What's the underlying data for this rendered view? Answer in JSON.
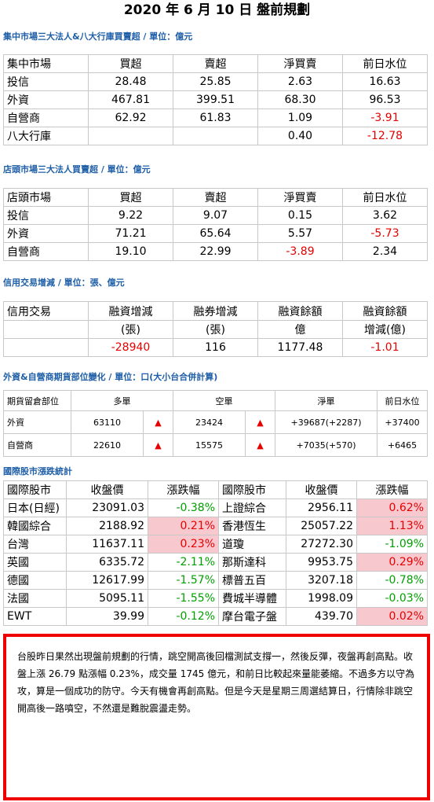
{
  "title": "2020 年 6 月 10 日  盤前規劃",
  "central": {
    "heading": "集中市場三大法人&八大行庫買賣超 / 單位：億元",
    "header": [
      "集中市場",
      "買超",
      "賣超",
      "淨買賣",
      "前日水位"
    ],
    "rows": [
      {
        "name": "投信",
        "buy": "28.48",
        "sell": "25.85",
        "net": "2.63",
        "prev": "16.63"
      },
      {
        "name": "外資",
        "buy": "467.81",
        "sell": "399.51",
        "net": "68.30",
        "prev": "96.53"
      },
      {
        "name": "自營商",
        "buy": "62.92",
        "sell": "61.83",
        "net": "1.09",
        "prev": "-3.91"
      },
      {
        "name": "八大行庫",
        "buy": "",
        "sell": "",
        "net": "0.40",
        "prev": "-12.78"
      }
    ]
  },
  "otc": {
    "heading": "店頭市場三大法人買賣超 / 單位：億元",
    "header": [
      "店頭市場",
      "買超",
      "賣超",
      "淨買賣",
      "前日水位"
    ],
    "rows": [
      {
        "name": "投信",
        "buy": "9.22",
        "sell": "9.07",
        "net": "0.15",
        "prev": "3.62"
      },
      {
        "name": "外資",
        "buy": "71.21",
        "sell": "65.64",
        "net": "5.57",
        "prev": "-5.73"
      },
      {
        "name": "自營商",
        "buy": "19.10",
        "sell": "22.99",
        "net": "-3.89",
        "prev": "2.34"
      }
    ]
  },
  "margin": {
    "heading": "信用交易增減 / 單位：張、億元",
    "header1": [
      "信用交易",
      "融資增減",
      "融券增減",
      "融資餘額",
      "融資餘額"
    ],
    "header2": [
      "",
      "(張)",
      "(張)",
      "億",
      "增減(億)"
    ],
    "values": [
      "",
      "-28940",
      "116",
      "1177.48",
      "-1.01"
    ]
  },
  "futures": {
    "heading": "外資&自營商期貨部位變化 / 單位：口(大小台合併計算)",
    "header": [
      "期貨留倉部位",
      "多單",
      "空單",
      "淨單",
      "前日水位"
    ],
    "rows": [
      {
        "name": "外資",
        "long": "63110",
        "long_mark": "▲",
        "short": "23424",
        "short_mark": "▲",
        "net": "+39687(+2287)",
        "prev": "+37400"
      },
      {
        "name": "自營商",
        "long": "22610",
        "long_mark": "▲",
        "short": "15575",
        "short_mark": "▲",
        "net": "+7035(+570)",
        "prev": "+6465"
      }
    ]
  },
  "intl": {
    "heading": "國際股市漲跌統計",
    "header": [
      "國際股市",
      "收盤價",
      "漲跌幅",
      "國際股市",
      "收盤價",
      "漲跌幅"
    ],
    "rows": [
      {
        "l_name": "日本(日經)",
        "l_close": "23091.03",
        "l_chg": "-0.38%",
        "r_name": "上證綜合",
        "r_close": "2956.11",
        "r_chg": "0.62%"
      },
      {
        "l_name": "韓國綜合",
        "l_close": "2188.92",
        "l_chg": "0.21%",
        "r_name": "香港恆生",
        "r_close": "25057.22",
        "r_chg": "1.13%"
      },
      {
        "l_name": "台灣",
        "l_close": "11637.11",
        "l_chg": "0.23%",
        "r_name": "道瓊",
        "r_close": "27272.30",
        "r_chg": "-1.09%"
      },
      {
        "l_name": "英國",
        "l_close": "6335.72",
        "l_chg": "-2.11%",
        "r_name": "那斯達科",
        "r_close": "9953.75",
        "r_chg": "0.29%"
      },
      {
        "l_name": "德國",
        "l_close": "12617.99",
        "l_chg": "-1.57%",
        "r_name": "標普五百",
        "r_close": "3207.18",
        "r_chg": "-0.78%"
      },
      {
        "l_name": "法國",
        "l_close": "5095.11",
        "l_chg": "-1.55%",
        "r_name": "費城半導體",
        "r_close": "1998.09",
        "r_chg": "-0.03%"
      },
      {
        "l_name": "EWT",
        "l_close": "39.99",
        "l_chg": "-0.12%",
        "r_name": "摩台電子盤",
        "r_close": "439.70",
        "r_chg": "0.02%"
      }
    ]
  },
  "commentary": "台股昨日果然出現盤前規劃的行情，跳空開高後回檔測試支撐一，然後反彈，夜盤再創高點。收盤上漲 26.79 點漲幅 0.23%，成交量 1745 億元，和前日比較起來量能萎縮。不過多方以守為攻，算是一個成功的防守。今天有機會再創高點。但是今天是星期三周選結算日，行情除非跳空開高後一路噴空，不然還是難脫震盪走勢。",
  "colors": {
    "negative": "#e60000",
    "positive_green": "#00a000",
    "highlight": "#f8c8cf",
    "heading": "#1f5fa8",
    "note_border": "#ee0000"
  }
}
